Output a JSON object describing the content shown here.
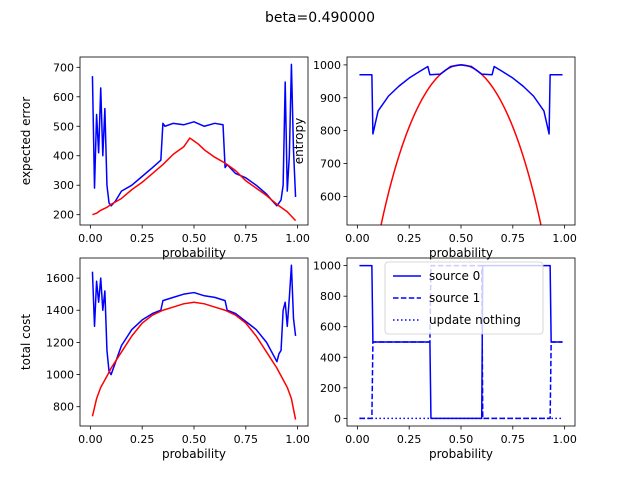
{
  "figure": {
    "suptitle": "beta=0.490000"
  },
  "colors": {
    "blue": "#0000ff",
    "red": "#ff0000"
  },
  "chart_data": [
    {
      "id": "expected-error",
      "type": "line",
      "xlabel": "probability",
      "ylabel": "expected error",
      "xlim": [
        -0.05,
        1.05
      ],
      "ylim": [
        165,
        735
      ],
      "xticks": [
        0.0,
        0.25,
        0.5,
        0.75,
        1.0
      ],
      "xtick_labels": [
        "0.00",
        "0.25",
        "0.50",
        "0.75",
        "1.00"
      ],
      "yticks": [
        200,
        300,
        400,
        500,
        600,
        700
      ],
      "ytick_labels": [
        "200",
        "300",
        "400",
        "500",
        "600",
        "700"
      ],
      "series": [
        {
          "color": "blue",
          "style": "solid",
          "x": [
            0.01,
            0.02,
            0.03,
            0.04,
            0.05,
            0.06,
            0.07,
            0.08,
            0.09,
            0.1,
            0.12,
            0.15,
            0.2,
            0.25,
            0.3,
            0.34,
            0.35,
            0.36,
            0.4,
            0.45,
            0.5,
            0.55,
            0.6,
            0.64,
            0.65,
            0.66,
            0.7,
            0.75,
            0.8,
            0.85,
            0.88,
            0.9,
            0.91,
            0.92,
            0.93,
            0.94,
            0.95,
            0.96,
            0.97,
            0.98,
            0.99
          ],
          "y": [
            670,
            290,
            540,
            410,
            630,
            400,
            560,
            300,
            240,
            230,
            245,
            280,
            300,
            330,
            360,
            385,
            510,
            500,
            510,
            505,
            515,
            500,
            510,
            505,
            360,
            370,
            340,
            325,
            300,
            270,
            245,
            230,
            240,
            250,
            300,
            650,
            280,
            400,
            710,
            420,
            260
          ]
        },
        {
          "color": "red",
          "style": "solid",
          "x": [
            0.01,
            0.03,
            0.05,
            0.08,
            0.1,
            0.15,
            0.2,
            0.25,
            0.3,
            0.35,
            0.4,
            0.45,
            0.48,
            0.5,
            0.52,
            0.55,
            0.6,
            0.65,
            0.7,
            0.75,
            0.8,
            0.85,
            0.9,
            0.95,
            0.99
          ],
          "y": [
            200,
            205,
            215,
            225,
            235,
            255,
            285,
            310,
            340,
            370,
            405,
            430,
            460,
            450,
            440,
            420,
            395,
            375,
            350,
            315,
            290,
            265,
            235,
            210,
            180
          ]
        }
      ]
    },
    {
      "id": "entropy",
      "type": "line",
      "xlabel": "probability",
      "ylabel": "entropy",
      "xlim": [
        -0.05,
        1.05
      ],
      "ylim": [
        513,
        1024
      ],
      "xticks": [
        0.0,
        0.25,
        0.5,
        0.75,
        1.0
      ],
      "xtick_labels": [
        "0.00",
        "0.25",
        "0.50",
        "0.75",
        "1.00"
      ],
      "yticks": [
        600,
        700,
        800,
        900,
        1000
      ],
      "ytick_labels": [
        "600",
        "700",
        "800",
        "900",
        "1000"
      ],
      "series": [
        {
          "color": "red",
          "style": "solid",
          "function": "binary-entropy",
          "xrange": [
            0.01,
            0.99
          ]
        },
        {
          "color": "blue",
          "style": "solid",
          "x": [
            0.01,
            0.07,
            0.075,
            0.1,
            0.15,
            0.2,
            0.25,
            0.3,
            0.34,
            0.35,
            0.4,
            0.45,
            0.5,
            0.55,
            0.6,
            0.65,
            0.66,
            0.7,
            0.75,
            0.8,
            0.85,
            0.9,
            0.925,
            0.93,
            0.99
          ],
          "y": [
            970,
            970,
            790,
            860,
            905,
            935,
            960,
            980,
            995,
            970,
            972,
            995,
            1000,
            995,
            972,
            970,
            995,
            980,
            960,
            935,
            905,
            860,
            790,
            970,
            970
          ]
        }
      ]
    },
    {
      "id": "total-cost",
      "type": "line",
      "xlabel": "probability",
      "ylabel": "total cost",
      "xlim": [
        -0.05,
        1.05
      ],
      "ylim": [
        680,
        1725
      ],
      "xticks": [
        0.0,
        0.25,
        0.5,
        0.75,
        1.0
      ],
      "xtick_labels": [
        "0.00",
        "0.25",
        "0.50",
        "0.75",
        "1.00"
      ],
      "yticks": [
        800,
        1000,
        1200,
        1400,
        1600
      ],
      "ytick_labels": [
        "800",
        "1000",
        "1200",
        "1400",
        "1600"
      ],
      "series": [
        {
          "color": "blue",
          "style": "solid",
          "x": [
            0.01,
            0.02,
            0.03,
            0.04,
            0.05,
            0.06,
            0.07,
            0.08,
            0.09,
            0.1,
            0.15,
            0.2,
            0.25,
            0.3,
            0.34,
            0.35,
            0.4,
            0.45,
            0.5,
            0.55,
            0.6,
            0.65,
            0.66,
            0.7,
            0.75,
            0.8,
            0.85,
            0.9,
            0.91,
            0.92,
            0.93,
            0.94,
            0.95,
            0.96,
            0.97,
            0.98,
            0.99
          ],
          "y": [
            1640,
            1300,
            1580,
            1450,
            1600,
            1400,
            1520,
            1150,
            1020,
            1000,
            1180,
            1280,
            1340,
            1380,
            1400,
            1460,
            1480,
            1500,
            1510,
            1490,
            1480,
            1460,
            1400,
            1380,
            1330,
            1280,
            1200,
            1080,
            1130,
            1150,
            1400,
            1450,
            1300,
            1480,
            1680,
            1350,
            1240
          ]
        },
        {
          "color": "red",
          "style": "solid",
          "x": [
            0.01,
            0.03,
            0.05,
            0.08,
            0.1,
            0.15,
            0.2,
            0.25,
            0.3,
            0.35,
            0.4,
            0.45,
            0.5,
            0.55,
            0.6,
            0.65,
            0.7,
            0.75,
            0.8,
            0.85,
            0.9,
            0.95,
            0.97,
            0.99
          ],
          "y": [
            740,
            850,
            920,
            990,
            1040,
            1140,
            1240,
            1320,
            1370,
            1400,
            1420,
            1440,
            1450,
            1440,
            1420,
            1400,
            1370,
            1320,
            1240,
            1140,
            1040,
            920,
            850,
            720
          ]
        }
      ]
    },
    {
      "id": "sources",
      "type": "line",
      "xlabel": "probability",
      "ylabel": "",
      "xlim": [
        -0.05,
        1.05
      ],
      "ylim": [
        -50,
        1050
      ],
      "xticks": [
        0.0,
        0.25,
        0.5,
        0.75,
        1.0
      ],
      "xtick_labels": [
        "0.00",
        "0.25",
        "0.50",
        "0.75",
        "1.00"
      ],
      "yticks": [
        0,
        200,
        400,
        600,
        800,
        1000
      ],
      "ytick_labels": [
        "0",
        "200",
        "400",
        "600",
        "800",
        "1000"
      ],
      "legend": {
        "placement": "upper center",
        "entries": [
          "source 0",
          "source 1",
          "update nothing"
        ]
      },
      "series": [
        {
          "name": "source 0",
          "color": "blue",
          "style": "solid",
          "x": [
            0.01,
            0.07,
            0.075,
            0.35,
            0.355,
            0.6,
            0.605,
            0.93,
            0.935,
            0.99
          ],
          "y": [
            1000,
            1000,
            500,
            500,
            0,
            0,
            1000,
            1000,
            500,
            500
          ]
        },
        {
          "name": "source 1",
          "color": "blue",
          "style": "dashed",
          "x": [
            0.01,
            0.07,
            0.075,
            0.35,
            0.355,
            0.6,
            0.605,
            0.93,
            0.935,
            0.99
          ],
          "y": [
            0,
            0,
            500,
            500,
            1000,
            1000,
            0,
            0,
            500,
            500
          ]
        },
        {
          "name": "update nothing",
          "color": "blue",
          "style": "dotted",
          "x": [
            0.01,
            0.99
          ],
          "y": [
            0,
            0
          ]
        }
      ]
    }
  ]
}
